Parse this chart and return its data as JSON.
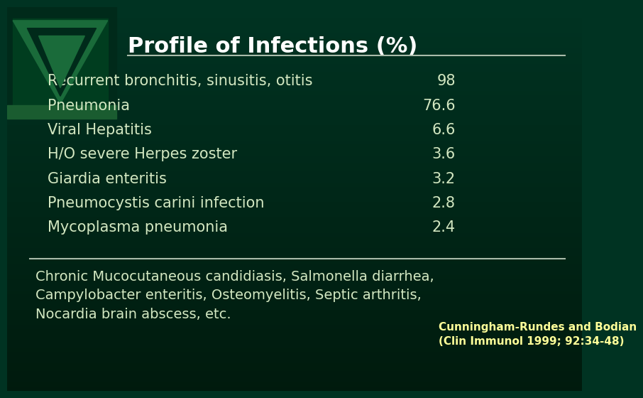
{
  "title": "Profile of Infections (%)",
  "bg_color_top": "#003322",
  "bg_color_bottom": "#001a0d",
  "text_color": "#d4e8c2",
  "title_color": "#ffffff",
  "rows": [
    {
      "label": "Recurrent bronchitis, sinusitis, otitis",
      "value": "98"
    },
    {
      "label": "Pneumonia",
      "value": "76.6"
    },
    {
      "label": "Viral Hepatitis",
      "value": "6.6"
    },
    {
      "label": "H/O severe Herpes zoster",
      "value": "3.6"
    },
    {
      "label": "Giardia enteritis",
      "value": "3.2"
    },
    {
      "label": "Pneumocystis carini infection",
      "value": "2.8"
    },
    {
      "label": "Mycoplasma pneumonia",
      "value": "2.4"
    }
  ],
  "footer_text": "Chronic Mucocutaneous candidiasis, Salmonella diarrhea,\nCampylobacter enteritis, Osteomyelitis, Septic arthritis,\nNocardia brain abscess, etc.",
  "citation": "Cunningham-Rundes and Bodian\n(Clin Immunol 1999; 92:34-48)",
  "citation_color": "#ffff99",
  "line_color": "#aabbaa",
  "title_underline_color": "#aabbaa",
  "label_fontsize": 15,
  "title_fontsize": 22,
  "footer_fontsize": 14,
  "citation_fontsize": 11
}
